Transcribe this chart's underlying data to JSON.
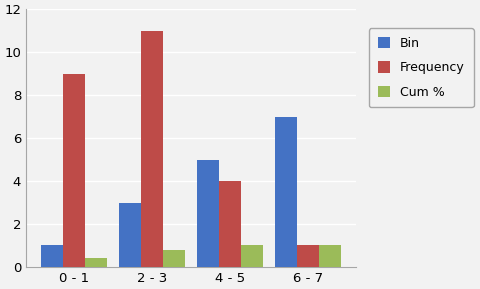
{
  "categories": [
    "0 - 1",
    "2 - 3",
    "4 - 5",
    "6 - 7"
  ],
  "bin_values": [
    1,
    3,
    5,
    7
  ],
  "frequency_values": [
    9,
    11,
    4,
    1
  ],
  "cum_pct_values": [
    0.4,
    0.8,
    1.0,
    1.0
  ],
  "bin_color": "#4472C4",
  "frequency_color": "#BE4B48",
  "cum_pct_color": "#9BBB59",
  "ylim": [
    0,
    12
  ],
  "yticks": [
    0,
    2,
    4,
    6,
    8,
    10,
    12
  ],
  "legend_labels": [
    "Bin",
    "Frequency",
    "Cum %"
  ],
  "background_color": "#F2F2F2",
  "plot_bg_color": "#F2F2F2",
  "bar_width": 0.28,
  "grid_color": "#FFFFFF",
  "spine_color": "#A6A6A6",
  "tick_label_fontsize": 9.5,
  "legend_fontsize": 9
}
